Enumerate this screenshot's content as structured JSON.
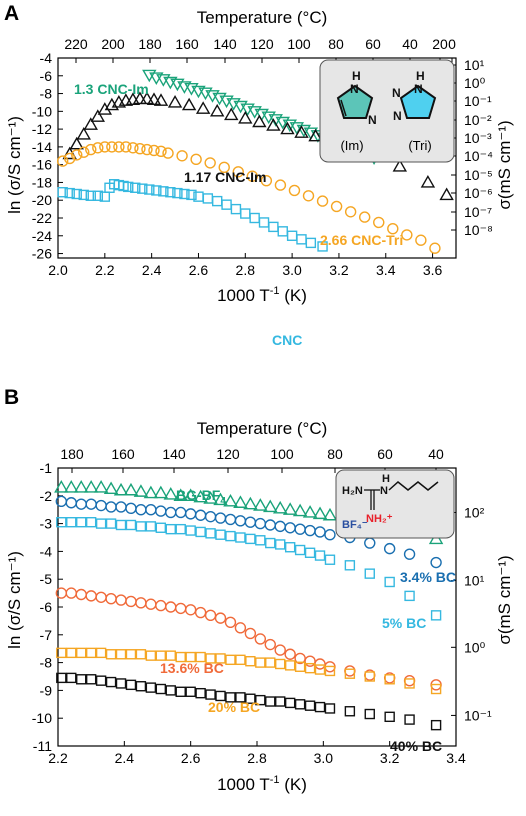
{
  "panels": [
    {
      "label": "A",
      "top_axis_title": "Temperature (°C)",
      "top_ticks": [
        "220",
        "200",
        "180",
        "160",
        "140",
        "120",
        "100",
        "80",
        "60",
        "40",
        "20",
        "0"
      ],
      "xlabel_main": "1000 T",
      "xlabel_sup": "-1",
      "xlabel_unit": " (K)",
      "ylabel": "ln (σ/S cm⁻¹)",
      "ylabel_right": "σ(mS cm⁻¹)",
      "inset_labels": [
        "(Im)",
        "(Tri)"
      ],
      "series_labels": [
        "1.3 CNC-Im",
        "1.17 CNC-Im",
        "2.66 CNC-Tri",
        "CNC"
      ]
    },
    {
      "label": "B",
      "top_axis_title": "Temperature (°C)",
      "top_ticks": [
        "180",
        "160",
        "140",
        "120",
        "100",
        "80",
        "60",
        "40"
      ],
      "xlabel_main": "1000 T",
      "xlabel_sup": "-1",
      "xlabel_unit": " (K)",
      "ylabel": "ln (σ/S cm⁻¹)",
      "ylabel_right": "σ(mS cm⁻¹)",
      "inset_labels": [
        "H₂N",
        "H",
        "N",
        "NH₂⁺",
        "BF₄⁻"
      ],
      "series_labels": [
        "BG-BF4",
        "3.4% BC",
        "5% BC",
        "13.6% BC",
        "20% BC",
        "40% BC"
      ]
    }
  ],
  "chart_data": [
    {
      "type": "scatter",
      "xlim": [
        2.0,
        3.7
      ],
      "ylim": [
        -26.5,
        -4
      ],
      "x_ticks": [
        "2.0",
        "2.2",
        "2.4",
        "2.6",
        "2.8",
        "3.0",
        "3.2",
        "3.4",
        "3.6"
      ],
      "y_ticks": [
        "-4",
        "-6",
        "-8",
        "-10",
        "-12",
        "-14",
        "-16",
        "-18",
        "-20",
        "-22",
        "-24",
        "-26"
      ],
      "y_right_ticks": [
        "10¹",
        "10⁰",
        "10⁻¹",
        "10⁻²",
        "10⁻³",
        "10⁻⁴",
        "10⁻⁵",
        "10⁻⁶",
        "10⁻⁷",
        "10⁻⁸"
      ],
      "series": [
        {
          "name": "1.3 CNC-Im",
          "marker": "triangle-down",
          "color": "#1aa37a",
          "x": [
            2.39,
            2.42,
            2.45,
            2.48,
            2.51,
            2.54,
            2.57,
            2.6,
            2.63,
            2.66,
            2.69,
            2.72,
            2.75,
            2.78,
            2.81,
            2.84,
            2.87,
            2.9,
            2.93,
            2.96,
            2.99,
            3.02,
            3.05,
            3.08,
            3.11,
            3.14,
            3.17,
            3.2,
            3.23,
            3.26,
            3.29,
            3.32,
            3.35
          ],
          "y": [
            -5.9,
            -6.2,
            -6.4,
            -6.7,
            -6.9,
            -7.2,
            -7.4,
            -7.7,
            -7.9,
            -8.2,
            -8.5,
            -8.8,
            -9.1,
            -9.4,
            -9.7,
            -10.0,
            -10.3,
            -10.6,
            -10.9,
            -11.2,
            -11.5,
            -11.8,
            -12.1,
            -12.4,
            -12.7,
            -13.0,
            -13.3,
            -13.6,
            -13.9,
            -14.2,
            -14.5,
            -14.9,
            -15.2
          ]
        },
        {
          "name": "1.17 CNC-Im",
          "marker": "triangle",
          "color": "#111111",
          "x": [
            2.05,
            2.08,
            2.11,
            2.14,
            2.17,
            2.2,
            2.23,
            2.26,
            2.29,
            2.32,
            2.35,
            2.38,
            2.41,
            2.44,
            2.5,
            2.56,
            2.62,
            2.68,
            2.74,
            2.8,
            2.86,
            2.92,
            2.98,
            3.04,
            3.1,
            3.16,
            3.22,
            3.28,
            3.34,
            3.46,
            3.58,
            3.66
          ],
          "y": [
            -14.8,
            -13.7,
            -12.6,
            -11.5,
            -10.6,
            -9.8,
            -9.3,
            -9.0,
            -8.8,
            -8.7,
            -8.6,
            -8.6,
            -8.7,
            -8.8,
            -9.0,
            -9.3,
            -9.7,
            -10.0,
            -10.4,
            -10.8,
            -11.2,
            -11.6,
            -12.0,
            -12.4,
            -12.8,
            -13.3,
            -13.8,
            -14.3,
            -14.9,
            -16.2,
            -18.0,
            -19.4
          ]
        },
        {
          "name": "2.66 CNC-Tri",
          "marker": "circle",
          "color": "#f5a623",
          "x": [
            2.02,
            2.05,
            2.08,
            2.11,
            2.14,
            2.17,
            2.2,
            2.23,
            2.26,
            2.29,
            2.32,
            2.35,
            2.38,
            2.41,
            2.44,
            2.47,
            2.53,
            2.59,
            2.65,
            2.71,
            2.77,
            2.83,
            2.89,
            2.95,
            3.01,
            3.07,
            3.13,
            3.19,
            3.25,
            3.31,
            3.37,
            3.43,
            3.49,
            3.55,
            3.61
          ],
          "y": [
            -15.6,
            -15.3,
            -14.9,
            -14.6,
            -14.3,
            -14.1,
            -14.0,
            -14.0,
            -14.0,
            -14.0,
            -14.1,
            -14.2,
            -14.3,
            -14.4,
            -14.5,
            -14.7,
            -15.0,
            -15.4,
            -15.8,
            -16.3,
            -16.8,
            -17.3,
            -17.8,
            -18.3,
            -18.9,
            -19.5,
            -20.1,
            -20.7,
            -21.3,
            -21.9,
            -22.5,
            -23.2,
            -23.9,
            -24.5,
            -25.4
          ]
        },
        {
          "name": "CNC",
          "marker": "square",
          "color": "#35b8e0",
          "x": [
            2.02,
            2.05,
            2.08,
            2.11,
            2.14,
            2.17,
            2.2,
            2.22,
            2.24,
            2.26,
            2.28,
            2.3,
            2.33,
            2.36,
            2.39,
            2.42,
            2.45,
            2.48,
            2.51,
            2.54,
            2.57,
            2.6,
            2.64,
            2.68,
            2.72,
            2.76,
            2.8,
            2.84,
            2.88,
            2.92,
            2.96,
            3.0,
            3.04,
            3.08,
            3.13
          ],
          "y": [
            -19.1,
            -19.2,
            -19.3,
            -19.4,
            -19.5,
            -19.5,
            -19.6,
            -18.6,
            -18.2,
            -18.3,
            -18.4,
            -18.5,
            -18.6,
            -18.7,
            -18.8,
            -18.9,
            -19.0,
            -19.1,
            -19.2,
            -19.3,
            -19.4,
            -19.6,
            -19.8,
            -20.1,
            -20.5,
            -21.0,
            -21.5,
            -22.0,
            -22.5,
            -23.0,
            -23.5,
            -24.0,
            -24.4,
            -24.8,
            -25.2
          ]
        }
      ]
    },
    {
      "type": "scatter",
      "xlim": [
        2.2,
        3.4
      ],
      "ylim": [
        -11,
        -1
      ],
      "x_ticks": [
        "2.2",
        "2.4",
        "2.6",
        "2.8",
        "3.0",
        "3.2",
        "3.4"
      ],
      "y_ticks": [
        "-1",
        "-2",
        "-3",
        "-4",
        "-5",
        "-6",
        "-7",
        "-8",
        "-9",
        "-10",
        "-11"
      ],
      "y_right_ticks": [
        "10²",
        "10¹",
        "10⁰",
        "10⁻¹"
      ],
      "series": [
        {
          "name": "BG-BF4",
          "marker": "triangle",
          "color": "#1aa37a",
          "x": [
            2.21,
            2.24,
            2.27,
            2.3,
            2.33,
            2.36,
            2.39,
            2.42,
            2.45,
            2.48,
            2.51,
            2.54,
            2.57,
            2.6,
            2.63,
            2.66,
            2.69,
            2.72,
            2.75,
            2.78,
            2.81,
            2.84,
            2.87,
            2.9,
            2.93,
            2.96,
            2.99,
            3.02,
            3.08,
            3.14,
            3.2,
            3.26,
            3.34
          ],
          "y": [
            -1.7,
            -1.7,
            -1.7,
            -1.7,
            -1.7,
            -1.75,
            -1.8,
            -1.8,
            -1.85,
            -1.9,
            -1.9,
            -1.95,
            -2.0,
            -2.0,
            -2.05,
            -2.1,
            -2.15,
            -2.2,
            -2.25,
            -2.3,
            -2.35,
            -2.4,
            -2.45,
            -2.5,
            -2.55,
            -2.6,
            -2.65,
            -2.7,
            -2.8,
            -2.95,
            -3.1,
            -3.25,
            -3.55
          ]
        },
        {
          "name": "3.4% BC",
          "marker": "circle",
          "color": "#1a6fb0",
          "x": [
            2.21,
            2.24,
            2.27,
            2.3,
            2.33,
            2.36,
            2.39,
            2.42,
            2.45,
            2.48,
            2.51,
            2.54,
            2.57,
            2.6,
            2.63,
            2.66,
            2.69,
            2.72,
            2.75,
            2.78,
            2.81,
            2.84,
            2.87,
            2.9,
            2.93,
            2.96,
            2.99,
            3.02,
            3.08,
            3.14,
            3.2,
            3.26,
            3.34
          ],
          "y": [
            -2.2,
            -2.25,
            -2.3,
            -2.3,
            -2.35,
            -2.4,
            -2.4,
            -2.45,
            -2.5,
            -2.5,
            -2.55,
            -2.6,
            -2.6,
            -2.65,
            -2.7,
            -2.75,
            -2.8,
            -2.85,
            -2.9,
            -2.95,
            -3.0,
            -3.05,
            -3.1,
            -3.15,
            -3.2,
            -3.25,
            -3.3,
            -3.4,
            -3.5,
            -3.7,
            -3.9,
            -4.1,
            -4.4
          ]
        },
        {
          "name": "5% BC",
          "marker": "square",
          "color": "#35b8e0",
          "x": [
            2.21,
            2.24,
            2.27,
            2.3,
            2.33,
            2.36,
            2.39,
            2.42,
            2.45,
            2.48,
            2.51,
            2.54,
            2.57,
            2.6,
            2.63,
            2.66,
            2.69,
            2.72,
            2.75,
            2.78,
            2.81,
            2.84,
            2.87,
            2.9,
            2.93,
            2.96,
            2.99,
            3.02,
            3.08,
            3.14,
            3.2,
            3.26,
            3.34
          ],
          "y": [
            -2.95,
            -2.95,
            -2.95,
            -2.95,
            -3.0,
            -3.0,
            -3.05,
            -3.05,
            -3.1,
            -3.1,
            -3.15,
            -3.2,
            -3.2,
            -3.25,
            -3.3,
            -3.35,
            -3.4,
            -3.45,
            -3.5,
            -3.55,
            -3.6,
            -3.7,
            -3.75,
            -3.85,
            -3.95,
            -4.05,
            -4.15,
            -4.3,
            -4.5,
            -4.8,
            -5.1,
            -5.6,
            -6.3
          ]
        },
        {
          "name": "13.6% BC",
          "marker": "circle",
          "color": "#f06a3a",
          "x": [
            2.21,
            2.24,
            2.27,
            2.3,
            2.33,
            2.36,
            2.39,
            2.42,
            2.45,
            2.48,
            2.51,
            2.54,
            2.57,
            2.6,
            2.63,
            2.66,
            2.69,
            2.72,
            2.75,
            2.78,
            2.81,
            2.84,
            2.87,
            2.9,
            2.93,
            2.96,
            2.99,
            3.02,
            3.08,
            3.14,
            3.2,
            3.26,
            3.34
          ],
          "y": [
            -5.5,
            -5.5,
            -5.55,
            -5.6,
            -5.65,
            -5.7,
            -5.75,
            -5.8,
            -5.85,
            -5.9,
            -5.95,
            -6.0,
            -6.05,
            -6.1,
            -6.2,
            -6.3,
            -6.4,
            -6.55,
            -6.75,
            -6.95,
            -7.15,
            -7.35,
            -7.55,
            -7.7,
            -7.85,
            -7.95,
            -8.05,
            -8.15,
            -8.3,
            -8.45,
            -8.55,
            -8.65,
            -8.8
          ]
        },
        {
          "name": "20% BC",
          "marker": "square",
          "color": "#f5a623",
          "x": [
            2.21,
            2.24,
            2.27,
            2.3,
            2.33,
            2.36,
            2.39,
            2.42,
            2.45,
            2.48,
            2.51,
            2.54,
            2.57,
            2.6,
            2.63,
            2.66,
            2.69,
            2.72,
            2.75,
            2.78,
            2.81,
            2.84,
            2.87,
            2.9,
            2.93,
            2.96,
            2.99,
            3.02,
            3.08,
            3.14,
            3.2,
            3.26,
            3.34
          ],
          "y": [
            -7.65,
            -7.65,
            -7.65,
            -7.65,
            -7.65,
            -7.7,
            -7.7,
            -7.7,
            -7.7,
            -7.75,
            -7.75,
            -7.75,
            -7.8,
            -7.8,
            -7.8,
            -7.85,
            -7.85,
            -7.9,
            -7.9,
            -7.95,
            -8.0,
            -8.0,
            -8.05,
            -8.1,
            -8.15,
            -8.2,
            -8.25,
            -8.3,
            -8.4,
            -8.5,
            -8.6,
            -8.75,
            -8.95
          ]
        },
        {
          "name": "40% BC",
          "marker": "square",
          "color": "#111111",
          "x": [
            2.21,
            2.24,
            2.27,
            2.3,
            2.33,
            2.36,
            2.39,
            2.42,
            2.45,
            2.48,
            2.51,
            2.54,
            2.57,
            2.6,
            2.63,
            2.66,
            2.69,
            2.72,
            2.75,
            2.78,
            2.81,
            2.84,
            2.87,
            2.9,
            2.93,
            2.96,
            2.99,
            3.02,
            3.08,
            3.14,
            3.2,
            3.26,
            3.34
          ],
          "y": [
            -8.55,
            -8.55,
            -8.6,
            -8.6,
            -8.65,
            -8.7,
            -8.75,
            -8.8,
            -8.85,
            -8.9,
            -8.95,
            -9.0,
            -9.05,
            -9.05,
            -9.1,
            -9.15,
            -9.2,
            -9.25,
            -9.25,
            -9.3,
            -9.35,
            -9.4,
            -9.4,
            -9.45,
            -9.5,
            -9.55,
            -9.6,
            -9.65,
            -9.75,
            -9.85,
            -9.95,
            -10.05,
            -10.25
          ]
        }
      ]
    }
  ]
}
